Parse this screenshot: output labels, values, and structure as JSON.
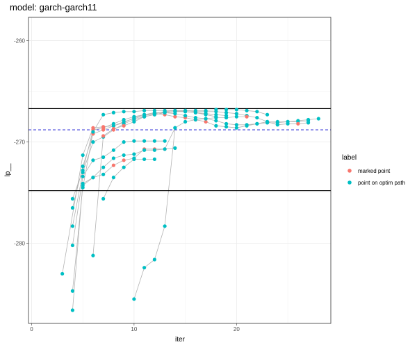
{
  "chart_data": {
    "type": "scatter",
    "title": "model: garch-garch11",
    "xlabel": "iter",
    "ylabel": "lp__",
    "xlim": [
      -0.3,
      29.2
    ],
    "ylim": [
      -287.9,
      -257.7
    ],
    "x_ticks": [
      0,
      10,
      20
    ],
    "y_ticks": [
      -260,
      -270,
      -280
    ],
    "grid": true,
    "hlines": [
      {
        "y": -266.7,
        "style": "solid",
        "color": "#000000"
      },
      {
        "y": -274.8,
        "style": "solid",
        "color": "#000000"
      },
      {
        "y": -268.8,
        "style": "dashed",
        "color": "#3b3bd9"
      }
    ],
    "legend": {
      "title": "label",
      "position": "right",
      "entries": [
        {
          "label": "marked point",
          "color": "#F8766D"
        },
        {
          "label": "point on optim path",
          "color": "#00BFC4"
        }
      ]
    },
    "paths": [
      {
        "points": [
          [
            3,
            -283.0
          ],
          [
            5,
            -271.3
          ],
          [
            6,
            -268.6
          ],
          [
            7,
            -268.5
          ],
          [
            8,
            -268.4
          ],
          [
            9,
            -268.1
          ],
          [
            10,
            -267.6
          ],
          [
            11,
            -267.3
          ],
          [
            12,
            -267.2
          ],
          [
            13,
            -267.3
          ],
          [
            14,
            -267.5
          ],
          [
            15,
            -267.6
          ],
          [
            16,
            -267.8
          ],
          [
            17,
            -268.0
          ],
          [
            18,
            -268.4
          ],
          [
            19,
            -268.5
          ],
          [
            20,
            -268.6
          ],
          [
            21,
            -268.4
          ],
          [
            22,
            -268.2
          ],
          [
            23,
            -268.0
          ],
          [
            24,
            -268.0
          ],
          [
            25,
            -268.0
          ],
          [
            26,
            -267.9
          ],
          [
            27,
            -267.8
          ],
          [
            28,
            -267.7
          ]
        ],
        "marked": [
          6,
          7,
          8,
          9,
          13,
          14,
          15,
          16,
          17
        ]
      },
      {
        "points": [
          [
            4,
            -275.6
          ],
          [
            5,
            -272.8
          ],
          [
            6,
            -268.8
          ],
          [
            7,
            -268.6
          ],
          [
            8,
            -268.2
          ],
          [
            9,
            -267.8
          ],
          [
            10,
            -267.5
          ],
          [
            11,
            -267.3
          ],
          [
            12,
            -267.1
          ],
          [
            13,
            -267.1
          ],
          [
            14,
            -267.2
          ],
          [
            15,
            -267.4
          ],
          [
            16,
            -267.6
          ],
          [
            17,
            -267.7
          ],
          [
            18,
            -267.9
          ],
          [
            19,
            -268.2
          ],
          [
            20,
            -268.3
          ],
          [
            21,
            -268.3
          ],
          [
            22,
            -268.2
          ],
          [
            23,
            -268.1
          ],
          [
            24,
            -268.1
          ],
          [
            25,
            -268.0
          ],
          [
            26,
            -268.0
          ],
          [
            27,
            -267.9
          ]
        ],
        "marked": [
          6,
          7
        ]
      },
      {
        "points": [
          [
            4,
            -276.5
          ],
          [
            5,
            -272.4
          ],
          [
            6,
            -269.2
          ],
          [
            7,
            -268.8
          ],
          [
            8,
            -268.4
          ],
          [
            9,
            -268.0
          ],
          [
            10,
            -267.7
          ],
          [
            11,
            -267.4
          ],
          [
            12,
            -267.2
          ],
          [
            13,
            -267.0
          ],
          [
            14,
            -266.9
          ],
          [
            15,
            -266.9
          ],
          [
            16,
            -267.0
          ],
          [
            17,
            -267.0
          ],
          [
            18,
            -267.0
          ],
          [
            19,
            -267.1
          ],
          [
            20,
            -267.2
          ],
          [
            21,
            -267.4
          ],
          [
            22,
            -267.6
          ],
          [
            23,
            -268.0
          ],
          [
            24,
            -268.3
          ],
          [
            25,
            -268.2
          ],
          [
            26,
            -268.2
          ],
          [
            27,
            -268.1
          ]
        ],
        "marked": [
          6,
          7,
          26
        ]
      },
      {
        "points": [
          [
            4,
            -278.3
          ],
          [
            5,
            -273.0
          ],
          [
            6,
            -270.0
          ],
          [
            7,
            -269.5
          ],
          [
            8,
            -268.8
          ],
          [
            9,
            -268.2
          ],
          [
            10,
            -267.8
          ],
          [
            11,
            -267.5
          ],
          [
            12,
            -267.3
          ],
          [
            13,
            -267.1
          ],
          [
            14,
            -267.0
          ],
          [
            15,
            -266.9
          ],
          [
            16,
            -266.9
          ],
          [
            17,
            -266.9
          ],
          [
            18,
            -266.8
          ],
          [
            19,
            -266.8
          ],
          [
            20,
            -266.8
          ],
          [
            21,
            -266.9
          ],
          [
            22,
            -267.0
          ],
          [
            23,
            -267.3
          ]
        ],
        "marked": [
          8
        ]
      },
      {
        "points": [
          [
            4,
            -280.2
          ],
          [
            5,
            -273.4
          ],
          [
            6,
            -271.8
          ],
          [
            7,
            -271.5
          ],
          [
            8,
            -270.8
          ],
          [
            9,
            -270.0
          ],
          [
            10,
            -269.9
          ],
          [
            11,
            -269.9
          ],
          [
            12,
            -269.9
          ],
          [
            13,
            -269.9
          ]
        ],
        "marked": []
      },
      {
        "points": [
          [
            4,
            -284.7
          ],
          [
            5,
            -274.3
          ],
          [
            6,
            -273.5
          ],
          [
            7,
            -273.2
          ],
          [
            8,
            -272.3
          ],
          [
            9,
            -271.8
          ],
          [
            10,
            -271.6
          ],
          [
            11,
            -270.7
          ],
          [
            12,
            -270.7
          ],
          [
            13,
            -270.7
          ],
          [
            14,
            -270.6
          ]
        ],
        "marked": [
          8,
          9,
          11,
          12,
          13
        ]
      },
      {
        "points": [
          [
            4,
            -286.6
          ],
          [
            5,
            -274.1
          ],
          [
            6,
            -273.5
          ],
          [
            7,
            -272.5
          ],
          [
            8,
            -271.6
          ],
          [
            9,
            -271.3
          ],
          [
            10,
            -271.2
          ],
          [
            11,
            -270.8
          ],
          [
            12,
            -270.8
          ],
          [
            13,
            -270.7
          ],
          [
            14,
            -268.6
          ],
          [
            15,
            -268.0
          ],
          [
            16,
            -267.8
          ],
          [
            17,
            -267.7
          ],
          [
            18,
            -267.6
          ],
          [
            19,
            -267.6
          ],
          [
            20,
            -267.5
          ],
          [
            21,
            -267.5
          ]
        ],
        "marked": [
          21
        ]
      },
      {
        "points": [
          [
            6,
            -281.2
          ],
          [
            7,
            -269.4
          ],
          [
            8,
            -268.7
          ],
          [
            9,
            -268.4
          ],
          [
            10,
            -268.0
          ],
          [
            11,
            -267.5
          ],
          [
            12,
            -267.3
          ],
          [
            13,
            -267.1
          ],
          [
            14,
            -267.0
          ],
          [
            15,
            -267.0
          ],
          [
            16,
            -267.1
          ],
          [
            17,
            -267.3
          ],
          [
            18,
            -267.5
          ]
        ],
        "marked": [
          7,
          8,
          9
        ]
      },
      {
        "points": [
          [
            7,
            -275.6
          ],
          [
            8,
            -273.5
          ],
          [
            9,
            -272.5
          ],
          [
            10,
            -271.7
          ],
          [
            11,
            -271.7
          ],
          [
            12,
            -271.7
          ]
        ],
        "marked": []
      },
      {
        "points": [
          [
            10,
            -285.5
          ],
          [
            11,
            -282.4
          ],
          [
            12,
            -281.6
          ],
          [
            13,
            -278.3
          ],
          [
            14,
            -268.6
          ]
        ],
        "marked": []
      },
      {
        "points": [
          [
            5,
            -274.5
          ],
          [
            6,
            -269.0
          ],
          [
            7,
            -267.3
          ],
          [
            8,
            -267.1
          ],
          [
            9,
            -267.0
          ],
          [
            10,
            -267.0
          ],
          [
            11,
            -266.9
          ],
          [
            12,
            -266.9
          ],
          [
            13,
            -266.9
          ],
          [
            14,
            -266.9
          ],
          [
            15,
            -267.0
          ],
          [
            16,
            -267.1
          ],
          [
            17,
            -267.2
          ],
          [
            18,
            -267.3
          ],
          [
            19,
            -267.4
          ]
        ],
        "marked": []
      }
    ]
  }
}
